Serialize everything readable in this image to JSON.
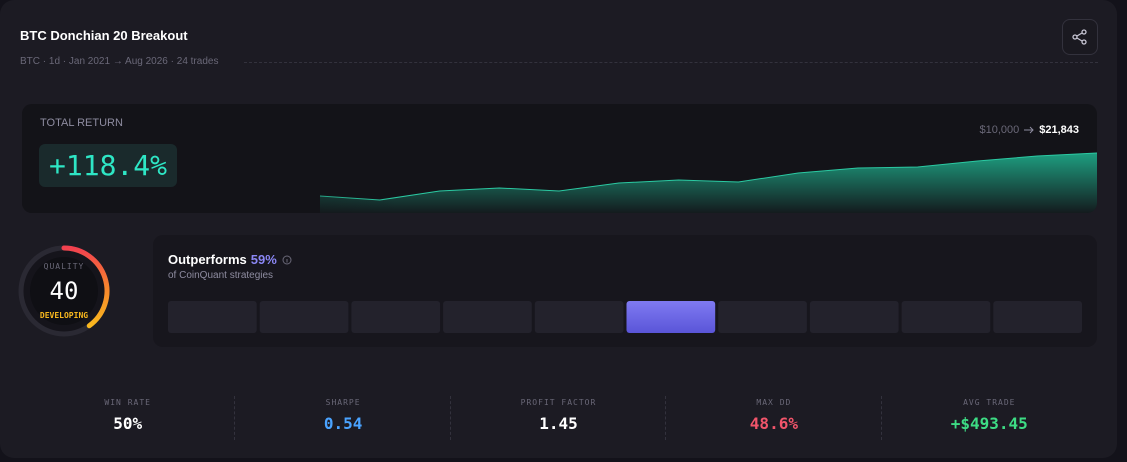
{
  "header": {
    "title": "BTC Donchian 20 Breakout",
    "subtitle": "BTC · 1d · Jan 2021 → Aug 2026 · 24 trades"
  },
  "total_return": {
    "label": "TOTAL RETURN",
    "value": "+118.4%",
    "start": "$10,000",
    "end": "$21,843",
    "equity": [
      10526,
      9474,
      11842,
      12632,
      11842,
      13947,
      14737,
      14211,
      16579,
      17895,
      18158,
      19737,
      21053,
      21843
    ]
  },
  "quality": {
    "label": "QUALITY",
    "score": 40,
    "grade": "DEVELOPING"
  },
  "percentile": {
    "label": "Outperforms",
    "value": 59,
    "value_label": "59%",
    "caption": "of CoinQuant strategies"
  },
  "stats": [
    {
      "label": "WIN RATE",
      "value": "50%",
      "color": "#ffffff"
    },
    {
      "label": "SHARPE",
      "value": "0.54",
      "color": "#4aa3ff"
    },
    {
      "label": "PROFIT FACTOR",
      "value": "1.45",
      "color": "#ffffff"
    },
    {
      "label": "MAX DD",
      "value": "48.6%",
      "color": "#f2556b"
    },
    {
      "label": "AVG TRADE",
      "value": "+$493.45",
      "color": "#3ddc84"
    }
  ]
}
